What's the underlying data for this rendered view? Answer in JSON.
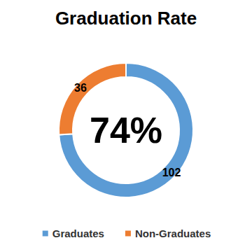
{
  "chart_data": {
    "type": "donut",
    "title": "Graduation Rate",
    "categories": [
      "Graduates",
      "Non-Graduates"
    ],
    "values": [
      102,
      36
    ],
    "colors": [
      "#5b9bd5",
      "#ed7d31"
    ],
    "data_labels": true,
    "legend": "bottom",
    "annotation": "74%"
  }
}
